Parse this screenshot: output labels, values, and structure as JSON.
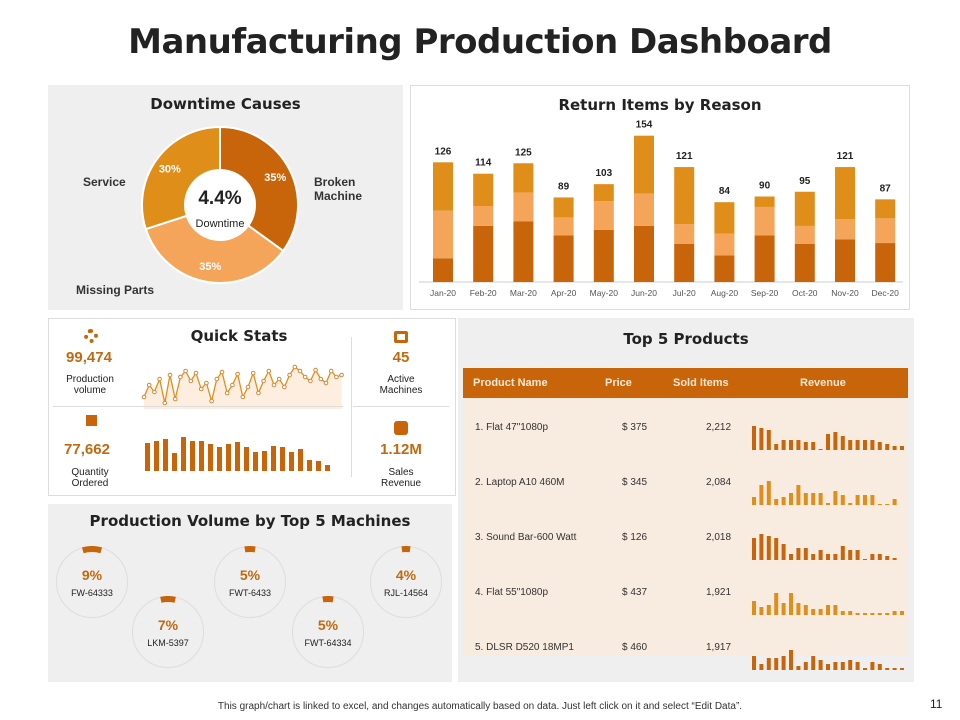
{
  "title": "Manufacturing Production Dashboard",
  "downtime": {
    "title": "Downtime Causes",
    "center_value": "4.4%",
    "center_label": "Downtime",
    "slices": [
      {
        "label": "Broken Machine",
        "pct": 35,
        "text": "35%",
        "color": "#c8650a"
      },
      {
        "label": "Missing Parts",
        "pct": 35,
        "text": "35%",
        "color": "#f4a55a"
      },
      {
        "label": "Service",
        "pct": 30,
        "text": "30%",
        "color": "#e08e1a"
      }
    ]
  },
  "chart_data": {
    "type": "bar",
    "stacked": true,
    "title": "Return Items by Reason",
    "categories": [
      "Jan-20",
      "Feb-20",
      "Mar-20",
      "Apr-20",
      "May-20",
      "Jun-20",
      "Jul-20",
      "Aug-20",
      "Sep-20",
      "Oct-20",
      "Nov-20",
      "Dec-20"
    ],
    "totals": [
      126,
      114,
      125,
      89,
      103,
      154,
      121,
      84,
      90,
      95,
      121,
      87
    ],
    "series": [
      {
        "values": [
          25,
          59,
          64,
          49,
          55,
          59,
          40,
          28,
          49,
          40,
          45,
          41
        ],
        "color": "#c8650a"
      },
      {
        "values": [
          50,
          21,
          30,
          19,
          30,
          34,
          21,
          23,
          30,
          19,
          21,
          26
        ],
        "color": "#f4a55a"
      },
      {
        "values": [
          51,
          34,
          31,
          21,
          18,
          61,
          60,
          33,
          11,
          36,
          55,
          20
        ],
        "color": "#e08e1a"
      }
    ],
    "ylim": [
      0,
      170
    ],
    "grid": false
  },
  "quick_stats": {
    "title": "Quick Stats",
    "production": {
      "value": "99,474",
      "label1": "Production",
      "label2": "volume"
    },
    "quantity": {
      "value": "77,662",
      "label1": "Quantity",
      "label2": "Ordered"
    },
    "machines": {
      "value": "45",
      "label1": "Active",
      "label2": "Machines"
    },
    "revenue": {
      "value": "1.12M",
      "label1": "Sales",
      "label2": "Revenue"
    }
  },
  "machines": {
    "title": "Production Volume by Top 5 Machines",
    "items": [
      {
        "pct": "9%",
        "name": "FW-64333",
        "value": 9
      },
      {
        "pct": "7%",
        "name": "LKM-5397",
        "value": 7
      },
      {
        "pct": "5%",
        "name": "FWT-6433",
        "value": 5
      },
      {
        "pct": "5%",
        "name": "FWT-64334",
        "value": 5
      },
      {
        "pct": "4%",
        "name": "RJL-14564",
        "value": 4
      }
    ]
  },
  "products": {
    "title": "Top 5 Products",
    "headers": [
      "Product Name",
      "Price",
      "Sold Items",
      "Revenue"
    ],
    "rows": [
      {
        "name": "1. Flat 47\"1080p",
        "price": "$ 375",
        "sold": "2,212"
      },
      {
        "name": "2. Laptop A10 460M",
        "price": "$ 345",
        "sold": "2,084"
      },
      {
        "name": "3. Sound Bar-600 Watt",
        "price": "$ 126",
        "sold": "2,018"
      },
      {
        "name": "4. Flat 55\"1080p",
        "price": "$ 437",
        "sold": "1,921"
      },
      {
        "name": "5. DLSR D520 18MP1",
        "price": "$ 460",
        "sold": "1,917"
      }
    ]
  },
  "footer": "This graph/chart is linked to excel, and changes automatically based on data. Just left click on it and select “Edit Data”.",
  "page_number": "11"
}
